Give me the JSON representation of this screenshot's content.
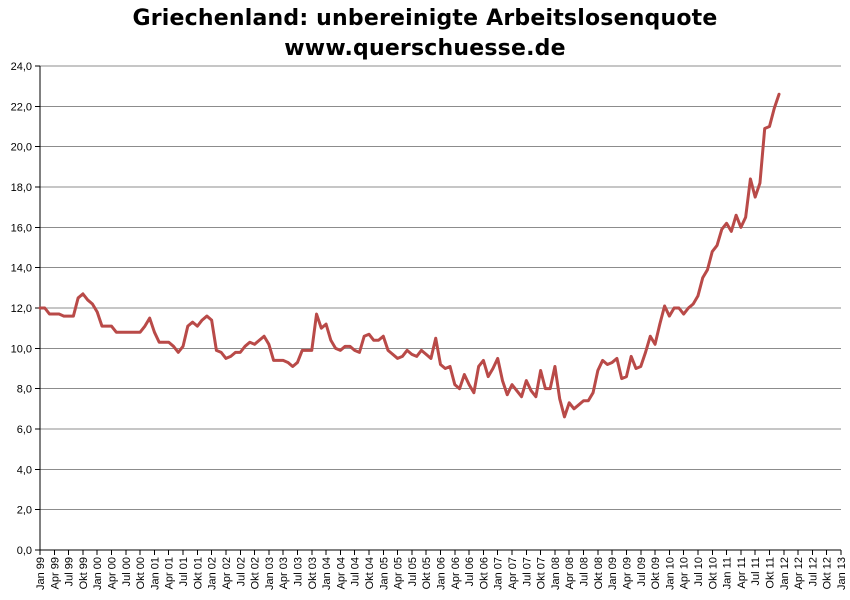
{
  "chart_data": {
    "type": "line",
    "title": "Griechenland: unbereinigte Arbeitslosenquote",
    "subtitle": "www.querschuesse.de",
    "xlabel": "",
    "ylabel": "",
    "ylim": [
      0,
      24
    ],
    "y_ticks": [
      "0,0",
      "2,0",
      "4,0",
      "6,0",
      "8,0",
      "10,0",
      "12,0",
      "14,0",
      "16,0",
      "18,0",
      "20,0",
      "22,0",
      "24,0"
    ],
    "x_ticks": [
      "Jan 99",
      "Apr 99",
      "Jul 99",
      "Okt 99",
      "Jan 00",
      "Apr 00",
      "Jul 00",
      "Okt 00",
      "Jan 01",
      "Apr 01",
      "Jul 01",
      "Okt 01",
      "Jan 02",
      "Apr 02",
      "Jul 02",
      "Okt 02",
      "Jan 03",
      "Apr 03",
      "Jul 03",
      "Okt 03",
      "Jan 04",
      "Apr 04",
      "Jul 04",
      "Okt 04",
      "Jan 05",
      "Apr 05",
      "Jul 05",
      "Okt 05",
      "Jan 06",
      "Apr 06",
      "Jul 06",
      "Okt 06",
      "Jan 07",
      "Apr 07",
      "Jul 07",
      "Okt 07",
      "Jan 08",
      "Apr 08",
      "Jul 08",
      "Okt 08",
      "Jan 09",
      "Apr 09",
      "Jul 09",
      "Okt 09",
      "Jan 10",
      "Apr 10",
      "Jul 10",
      "Okt 10",
      "Jan 11",
      "Apr 11",
      "Jul 11",
      "Okt 11",
      "Jan 12",
      "Apr 12",
      "Jul 12",
      "Okt 12",
      "Jan 13"
    ],
    "grid": true,
    "line_color": "#B94A48",
    "grid_color": "#8C8C8C",
    "series": [
      {
        "values": [
          12.0,
          12.0,
          11.7,
          11.7,
          11.7,
          11.6,
          11.6,
          11.6,
          12.5,
          12.7,
          12.4,
          12.2,
          11.8,
          11.1,
          11.1,
          11.1,
          10.8,
          10.8,
          10.8,
          10.8,
          10.8,
          10.8,
          11.1,
          11.5,
          10.8,
          10.3,
          10.3,
          10.3,
          10.1,
          9.8,
          10.1,
          11.1,
          11.3,
          11.1,
          11.4,
          11.6,
          11.4,
          9.9,
          9.8,
          9.5,
          9.6,
          9.8,
          9.8,
          10.1,
          10.3,
          10.2,
          10.4,
          10.6,
          10.2,
          9.4,
          9.4,
          9.4,
          9.3,
          9.1,
          9.3,
          9.9,
          9.9,
          9.9,
          11.7,
          11.0,
          11.2,
          10.4,
          10.0,
          9.9,
          10.1,
          10.1,
          9.9,
          9.8,
          10.6,
          10.7,
          10.4,
          10.4,
          10.6,
          9.9,
          9.7,
          9.5,
          9.6,
          9.9,
          9.7,
          9.6,
          9.9,
          9.7,
          9.5,
          10.5,
          9.2,
          9.0,
          9.1,
          8.2,
          8.0,
          8.7,
          8.2,
          7.8,
          9.1,
          9.4,
          8.6,
          9.0,
          9.5,
          8.4,
          7.7,
          8.2,
          7.9,
          7.6,
          8.4,
          7.9,
          7.6,
          8.9,
          8.0,
          8.0,
          9.1,
          7.5,
          6.6,
          7.3,
          7.0,
          7.2,
          7.4,
          7.4,
          7.8,
          8.9,
          9.4,
          9.2,
          9.3,
          9.5,
          8.5,
          8.6,
          9.6,
          9.0,
          9.1,
          9.8,
          10.6,
          10.2,
          11.2,
          12.1,
          11.6,
          12.0,
          12.0,
          11.7,
          12.0,
          12.2,
          12.6,
          13.5,
          13.9,
          14.8,
          15.1,
          15.9,
          16.2,
          15.8,
          16.6,
          16.0,
          16.5,
          18.4,
          17.5,
          18.2,
          20.9,
          21.0,
          21.9,
          22.6
        ]
      }
    ]
  }
}
